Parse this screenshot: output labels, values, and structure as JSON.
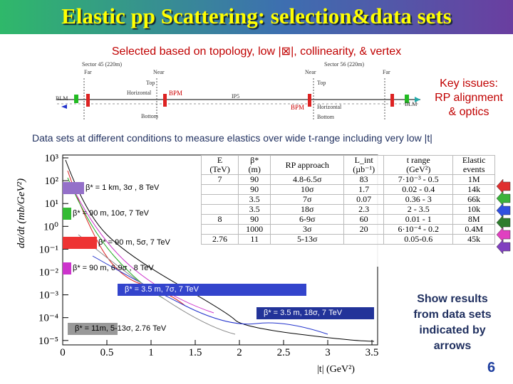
{
  "header": {
    "title": "Elastic pp Scattering: selection&data sets"
  },
  "subtitle": "Selected based on topology, low |⊠|, collinearity, & vertex",
  "diagram": {
    "labels": [
      "Sector 45 (220m)",
      "Far",
      "Near",
      "Top",
      "Horizontal",
      "Bottom",
      "BLM",
      "BPM",
      "IP5",
      "Sector 56 (220m)",
      "Near",
      "Far",
      "Top",
      "BPM",
      "Horizontal",
      "Bottom",
      "BLM"
    ]
  },
  "key_issues": [
    "Key issues:",
    "RP alignment",
    "& optics"
  ],
  "data_sets_note": "Data sets at different conditions to measure elastics over wide t-range including very low |t|",
  "plot": {
    "y_axis_label": "dσ/dt  (mb/GeV²)",
    "y_ticks": [
      "10³",
      "10²",
      "10¹",
      "10⁰",
      "10⁻¹",
      "10⁻²",
      "10⁻³",
      "10⁻⁴",
      "10⁻⁵"
    ],
    "x_ticks": [
      "0",
      "0.5",
      "1",
      "1.5",
      "2",
      "2.5",
      "3",
      "3.5"
    ],
    "x_axis_label": "|t|   (GeV²)",
    "legend": [
      "β* = 1 km, 3σ , 8 TeV",
      "β* = 90 m, 10σ, 7 TeV",
      "β* = 90 m, 5σ, 7 TeV",
      "β* = 90 m, 6-9σ , 8 TeV",
      "β* = 3.5 m, 7σ, 7 TeV",
      "β* = 3.5 m, 18σ, 7 TeV",
      "β* = 11m, 5-13σ, 2.76 TeV"
    ]
  },
  "table": {
    "header": [
      [
        "E",
        "(TeV)"
      ],
      [
        "β*",
        "(m)"
      ],
      [
        "RP approach",
        ""
      ],
      [
        "L_int",
        "(µb⁻¹)"
      ],
      [
        "t range",
        "(GeV²)"
      ],
      [
        "Elastic",
        "events"
      ]
    ],
    "rows": [
      [
        "7",
        "90",
        "4.8-6.5σ",
        "83",
        "7·10⁻³ - 0.5",
        "1M"
      ],
      [
        "",
        "90",
        "10σ",
        "1.7",
        "0.02 - 0.4",
        "14k"
      ],
      [
        "",
        "3.5",
        "7σ",
        "0.07",
        "0.36 - 3",
        "66k"
      ],
      [
        "",
        "3.5",
        "18σ",
        "2.3",
        "2 - 3.5",
        "10k"
      ],
      [
        "8",
        "90",
        "6-9σ",
        "60",
        "0.01 - 1",
        "8M"
      ],
      [
        "",
        "1000",
        "3σ",
        "20",
        "6·10⁻⁴ - 0.2",
        "0.4M"
      ],
      [
        "2.76",
        "11",
        "5-13σ",
        "",
        "0.05-0.6",
        "45k"
      ]
    ]
  },
  "side_note": [
    "Show results",
    "from data sets",
    "indicated by",
    "arrows"
  ],
  "page_number": "6"
}
